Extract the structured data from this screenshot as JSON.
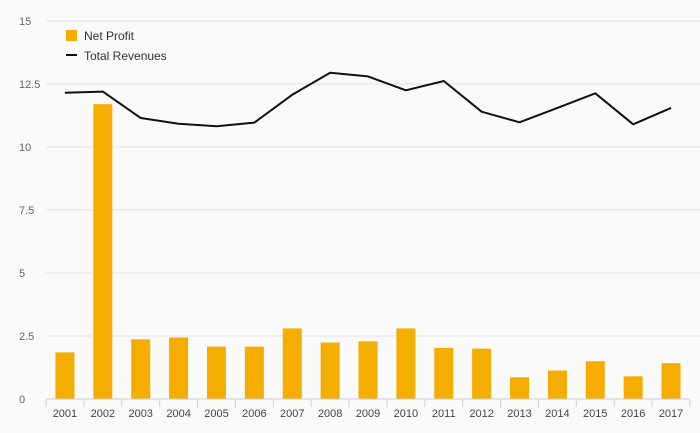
{
  "chart_data": {
    "type": "bar",
    "categories": [
      "2001",
      "2002",
      "2003",
      "2004",
      "2005",
      "2006",
      "2007",
      "2008",
      "2009",
      "2010",
      "2011",
      "2012",
      "2013",
      "2014",
      "2015",
      "2016",
      "2017"
    ],
    "ylim": [
      0,
      15
    ],
    "yticks": [
      0,
      2.5,
      5,
      7.5,
      10,
      12.5,
      15
    ],
    "ytick_labels": [
      "0",
      "2.5",
      "5",
      "7.5",
      "10",
      "12.5",
      "15"
    ],
    "grid": true,
    "legend_position": "top-left",
    "series": [
      {
        "name": "Net Profit",
        "type": "bar",
        "color": "#f5ad00",
        "values": [
          1.85,
          11.7,
          2.37,
          2.44,
          2.08,
          2.08,
          2.8,
          2.24,
          2.29,
          2.8,
          2.03,
          2.0,
          0.86,
          1.13,
          1.5,
          0.9,
          1.42
        ]
      },
      {
        "name": "Total Revenues",
        "type": "line",
        "color": "#111111",
        "values": [
          12.15,
          12.2,
          11.15,
          10.92,
          10.82,
          10.97,
          12.07,
          12.95,
          12.8,
          12.25,
          12.62,
          11.4,
          10.98,
          11.55,
          12.13,
          10.9,
          11.55
        ]
      }
    ]
  }
}
